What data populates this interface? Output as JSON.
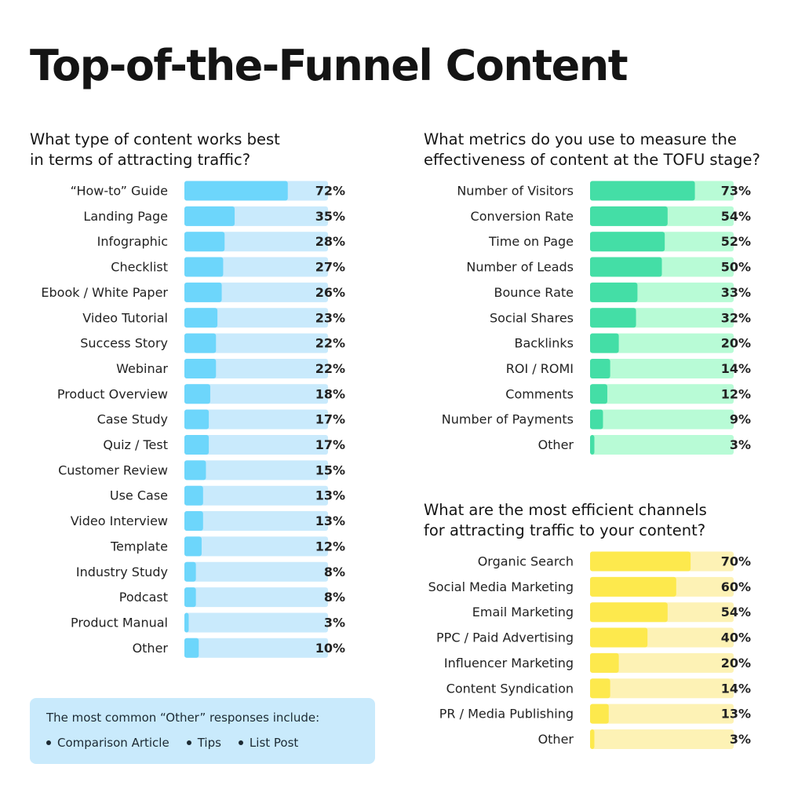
{
  "page": {
    "title": "Top-of-the-Funnel Content"
  },
  "chart_data": [
    {
      "type": "bar",
      "orientation": "horizontal",
      "title": "What type of content works best in terms of attracting traffic?",
      "title_lines": [
        "What type of content works best",
        "in terms of attracting traffic?"
      ],
      "categories": [
        "“How-to” Guide",
        "Landing Page",
        "Infographic",
        "Checklist",
        "Ebook / White Paper",
        "Video Tutorial",
        "Success Story",
        "Webinar",
        "Product Overview",
        "Case Study",
        "Quiz / Test",
        "Customer Review",
        "Use Case",
        "Video Interview",
        "Template",
        "Industry Study",
        "Podcast",
        "Product Manual",
        "Other"
      ],
      "values": [
        72,
        35,
        28,
        27,
        26,
        23,
        22,
        22,
        18,
        17,
        17,
        15,
        13,
        13,
        12,
        8,
        8,
        3,
        10
      ],
      "value_labels": [
        "72%",
        "35%",
        "28%",
        "27%",
        "26%",
        "23%",
        "22%",
        "22%",
        "18%",
        "17%",
        "17%",
        "15%",
        "13%",
        "13%",
        "12%",
        "8%",
        "8%",
        "3%",
        "10%"
      ],
      "xlim": [
        0,
        100
      ],
      "colors": {
        "fill": "#6dd6fb",
        "track": "#c9eafc"
      }
    },
    {
      "type": "bar",
      "orientation": "horizontal",
      "title": "What metrics do you use to measure the effectiveness of content at the TOFU stage?",
      "title_lines": [
        "What metrics do you use to measure the",
        "effectiveness of content at the TOFU stage?"
      ],
      "categories": [
        "Number of Visitors",
        "Conversion Rate",
        "Time on Page",
        "Number of Leads",
        "Bounce Rate",
        "Social Shares",
        "Backlinks",
        "ROI / ROMI",
        "Comments",
        "Number of Payments",
        "Other"
      ],
      "values": [
        73,
        54,
        52,
        50,
        33,
        32,
        20,
        14,
        12,
        9,
        3
      ],
      "value_labels": [
        "73%",
        "54%",
        "52%",
        "50%",
        "33%",
        "32%",
        "20%",
        "14%",
        "12%",
        "9%",
        "3%"
      ],
      "xlim": [
        0,
        100
      ],
      "colors": {
        "fill": "#44dea6",
        "track": "#b8fbd6"
      }
    },
    {
      "type": "bar",
      "orientation": "horizontal",
      "title": "What are the most efficient channels for attracting traffic to your content?",
      "title_lines": [
        "What are the most efficient channels",
        "for attracting traffic to your content?"
      ],
      "categories": [
        "Organic Search",
        "Social Media Marketing",
        "Email Marketing",
        "PPC / Paid Advertising",
        "Influencer Marketing",
        "Content Syndication",
        "PR / Media Publishing",
        "Other"
      ],
      "values": [
        70,
        60,
        54,
        40,
        20,
        14,
        13,
        3
      ],
      "value_labels": [
        "70%",
        "60%",
        "54%",
        "40%",
        "20%",
        "14%",
        "13%",
        "3%"
      ],
      "xlim": [
        0,
        100
      ],
      "colors": {
        "fill": "#fde94d",
        "track": "#fdf2b5"
      }
    }
  ],
  "note": {
    "intro": "The most common “Other” responses include:",
    "items": [
      "Comparison Article",
      "Tips",
      "List Post"
    ]
  }
}
